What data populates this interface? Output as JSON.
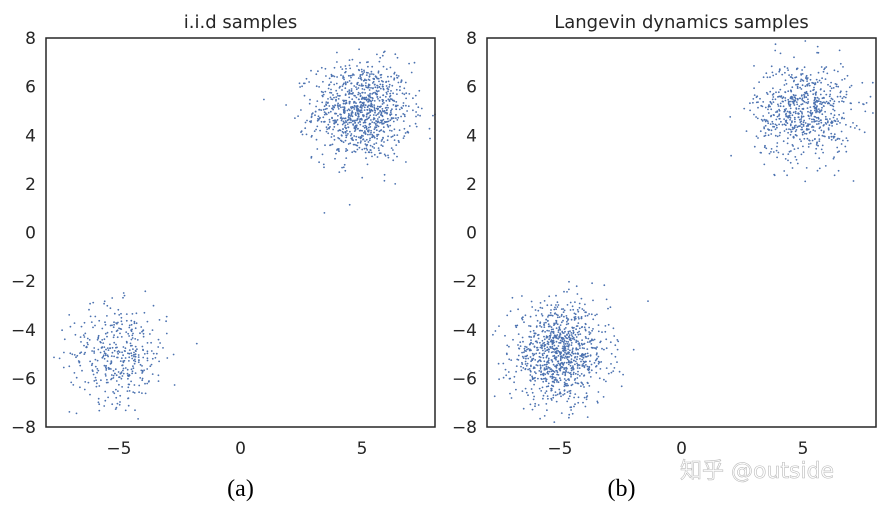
{
  "chart_data": [
    {
      "type": "scatter",
      "title": "i.i.d samples",
      "caption": "(a)",
      "xlim": [
        -8,
        8
      ],
      "ylim": [
        -8,
        8
      ],
      "xticks": [
        "−5",
        "0",
        "5"
      ],
      "xtick_values": [
        -5,
        0,
        5
      ],
      "yticks": [
        "8",
        "6",
        "4",
        "2",
        "0",
        "−2",
        "−4",
        "−6",
        "−8"
      ],
      "ytick_values": [
        8,
        6,
        4,
        2,
        0,
        -2,
        -4,
        -6,
        -8
      ],
      "grid": false,
      "color": "#4c72b0",
      "clusters": [
        {
          "center": [
            5,
            5
          ],
          "std": 1.0,
          "count": 1000
        },
        {
          "center": [
            -5,
            -5
          ],
          "std": 1.0,
          "count": 400
        }
      ]
    },
    {
      "type": "scatter",
      "title": "Langevin dynamics samples",
      "caption": "(b)",
      "xlim": [
        -8,
        8
      ],
      "ylim": [
        -8,
        8
      ],
      "xticks": [
        "−5",
        "0",
        "5"
      ],
      "xtick_values": [
        -5,
        0,
        5
      ],
      "yticks": [
        "8",
        "6",
        "4",
        "2",
        "0",
        "−2",
        "−4",
        "−6",
        "−8"
      ],
      "ytick_values": [
        8,
        6,
        4,
        2,
        0,
        -2,
        -4,
        -6,
        -8
      ],
      "grid": false,
      "color": "#4c72b0",
      "clusters": [
        {
          "center": [
            5,
            5
          ],
          "std": 1.0,
          "count": 700
        },
        {
          "center": [
            -5,
            -5
          ],
          "std": 1.0,
          "count": 1000
        }
      ]
    }
  ],
  "watermark": "知乎 @outside"
}
